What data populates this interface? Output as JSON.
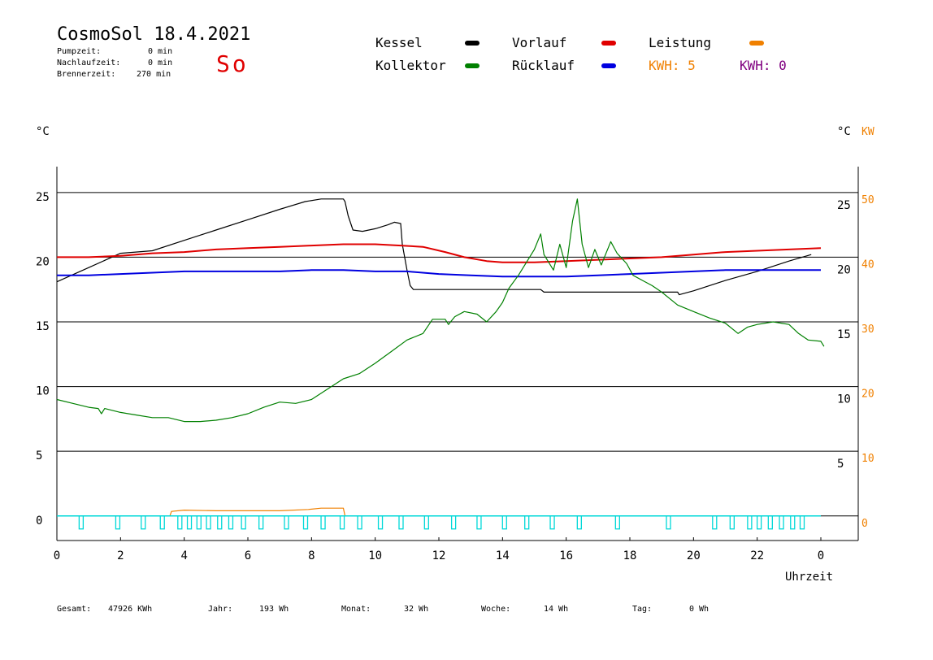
{
  "header": {
    "title": "CosmoSol 18.4.2021",
    "day": "So",
    "pumpzeit_label": "Pumpzeit:",
    "pumpzeit_value": "0 min",
    "nachlaufzeit_label": "Nachlaufzeit:",
    "nachlaufzeit_value": "0 min",
    "brennerzeit_label": "Brennerzeit:",
    "brennerzeit_value": "270 min"
  },
  "legend": {
    "kessel": "Kessel",
    "kollektor": "Kollektor",
    "vorlauf": "Vorlauf",
    "ruecklauf": "Rücklauf",
    "leistung": "Leistung",
    "kwh1": "KWH: 5",
    "kwh2": "KWH: 0"
  },
  "colors": {
    "kessel": "#000000",
    "kollektor": "#008000",
    "vorlauf": "#e00000",
    "ruecklauf": "#0000e0",
    "leistung": "#f08000",
    "kwh2": "#800080",
    "pump": "#00d8d8",
    "day": "#e00000"
  },
  "axes": {
    "left_unit": "°C",
    "right_unit": "°C",
    "right_unit2": "KW",
    "xlabel": "Uhrzeit"
  },
  "footer": {
    "gesamt_label": "Gesamt:",
    "gesamt_value": "47926 KWh",
    "jahr_label": "Jahr:",
    "jahr_value": "193 Wh",
    "monat_label": "Monat:",
    "monat_value": "32 Wh",
    "woche_label": "Woche:",
    "woche_value": "14 Wh",
    "tag_label": "Tag:",
    "tag_value": "0 Wh"
  },
  "chart_data": {
    "type": "line",
    "title": "CosmoSol 18.4.2021",
    "xlabel": "Uhrzeit",
    "ylabel": "°C",
    "xlim": [
      0,
      24
    ],
    "ylim": [
      -1.9,
      27
    ],
    "x_ticks": [
      "0",
      "2",
      "4",
      "6",
      "8",
      "10",
      "12",
      "14",
      "16",
      "18",
      "20",
      "22",
      "0"
    ],
    "y_left_ticks": [
      "0",
      "5",
      "10",
      "15",
      "20",
      "25"
    ],
    "y_right_temp_ticks": [
      "5",
      "10",
      "15",
      "20",
      "25"
    ],
    "y_right_kw_ticks": [
      "0",
      "10",
      "20",
      "30",
      "40",
      "50"
    ],
    "grid": "horizontal",
    "series": [
      {
        "name": "Kessel",
        "color": "#000000",
        "points": [
          [
            0,
            18.1
          ],
          [
            1,
            19.2
          ],
          [
            2,
            20.3
          ],
          [
            3,
            20.5
          ],
          [
            4,
            21.3
          ],
          [
            5,
            22.1
          ],
          [
            6,
            22.9
          ],
          [
            7,
            23.7
          ],
          [
            7.8,
            24.3
          ],
          [
            8.3,
            24.5
          ],
          [
            9.0,
            24.5
          ],
          [
            9.05,
            24.3
          ],
          [
            9.15,
            23.2
          ],
          [
            9.3,
            22.1
          ],
          [
            9.6,
            22.0
          ],
          [
            10.0,
            22.2
          ],
          [
            10.4,
            22.5
          ],
          [
            10.6,
            22.7
          ],
          [
            10.8,
            22.6
          ],
          [
            10.85,
            21.0
          ],
          [
            11.0,
            19.0
          ],
          [
            11.1,
            17.8
          ],
          [
            11.2,
            17.5
          ],
          [
            12,
            17.5
          ],
          [
            13,
            17.5
          ],
          [
            14,
            17.5
          ],
          [
            15.2,
            17.5
          ],
          [
            15.3,
            17.3
          ],
          [
            16,
            17.3
          ],
          [
            17,
            17.3
          ],
          [
            18,
            17.3
          ],
          [
            19.5,
            17.3
          ],
          [
            19.55,
            17.1
          ],
          [
            20,
            17.4
          ],
          [
            21,
            18.2
          ],
          [
            22,
            18.9
          ],
          [
            23,
            19.7
          ],
          [
            23.7,
            20.2
          ]
        ]
      },
      {
        "name": "Vorlauf",
        "color": "#e00000",
        "points": [
          [
            0,
            20.0
          ],
          [
            1,
            20.0
          ],
          [
            2,
            20.1
          ],
          [
            3,
            20.3
          ],
          [
            4,
            20.4
          ],
          [
            5,
            20.6
          ],
          [
            6,
            20.7
          ],
          [
            7,
            20.8
          ],
          [
            8,
            20.9
          ],
          [
            9,
            21.0
          ],
          [
            10,
            21.0
          ],
          [
            10.8,
            20.9
          ],
          [
            11.5,
            20.8
          ],
          [
            12.2,
            20.4
          ],
          [
            12.8,
            20.0
          ],
          [
            13.5,
            19.7
          ],
          [
            14,
            19.6
          ],
          [
            15,
            19.6
          ],
          [
            16,
            19.7
          ],
          [
            17,
            19.8
          ],
          [
            18,
            19.9
          ],
          [
            19,
            20.0
          ],
          [
            20,
            20.2
          ],
          [
            21,
            20.4
          ],
          [
            22,
            20.5
          ],
          [
            23,
            20.6
          ],
          [
            24,
            20.7
          ]
        ]
      },
      {
        "name": "Rücklauf",
        "color": "#0000e0",
        "points": [
          [
            0,
            18.6
          ],
          [
            1,
            18.6
          ],
          [
            2,
            18.7
          ],
          [
            3,
            18.8
          ],
          [
            4,
            18.9
          ],
          [
            5,
            18.9
          ],
          [
            6,
            18.9
          ],
          [
            7,
            18.9
          ],
          [
            8,
            19.0
          ],
          [
            9,
            19.0
          ],
          [
            10,
            18.9
          ],
          [
            11,
            18.9
          ],
          [
            12,
            18.7
          ],
          [
            13,
            18.6
          ],
          [
            14,
            18.5
          ],
          [
            15,
            18.5
          ],
          [
            16,
            18.5
          ],
          [
            17,
            18.6
          ],
          [
            18,
            18.7
          ],
          [
            19,
            18.8
          ],
          [
            20,
            18.9
          ],
          [
            21,
            19.0
          ],
          [
            22,
            19.0
          ],
          [
            23,
            19.0
          ],
          [
            24,
            19.0
          ]
        ]
      },
      {
        "name": "Kollektor",
        "color": "#008000",
        "points": [
          [
            0,
            9.0
          ],
          [
            0.5,
            8.7
          ],
          [
            1.0,
            8.4
          ],
          [
            1.3,
            8.3
          ],
          [
            1.4,
            7.9
          ],
          [
            1.5,
            8.3
          ],
          [
            2,
            8.0
          ],
          [
            2.5,
            7.8
          ],
          [
            3,
            7.6
          ],
          [
            3.5,
            7.6
          ],
          [
            4,
            7.3
          ],
          [
            4.5,
            7.3
          ],
          [
            5,
            7.4
          ],
          [
            5.5,
            7.6
          ],
          [
            6,
            7.9
          ],
          [
            6.5,
            8.4
          ],
          [
            7,
            8.8
          ],
          [
            7.5,
            8.7
          ],
          [
            8,
            9.0
          ],
          [
            8.5,
            9.8
          ],
          [
            9,
            10.6
          ],
          [
            9.5,
            11.0
          ],
          [
            10,
            11.8
          ],
          [
            10.5,
            12.7
          ],
          [
            11,
            13.6
          ],
          [
            11.5,
            14.1
          ],
          [
            11.8,
            15.2
          ],
          [
            12.2,
            15.2
          ],
          [
            12.3,
            14.8
          ],
          [
            12.5,
            15.4
          ],
          [
            12.8,
            15.8
          ],
          [
            13.2,
            15.6
          ],
          [
            13.5,
            15.0
          ],
          [
            13.8,
            15.8
          ],
          [
            14,
            16.5
          ],
          [
            14.2,
            17.6
          ],
          [
            14.5,
            18.6
          ],
          [
            14.8,
            19.8
          ],
          [
            15.0,
            20.6
          ],
          [
            15.2,
            21.8
          ],
          [
            15.3,
            20.2
          ],
          [
            15.6,
            19.0
          ],
          [
            15.8,
            21.0
          ],
          [
            16.0,
            19.2
          ],
          [
            16.2,
            22.8
          ],
          [
            16.35,
            24.5
          ],
          [
            16.5,
            21.0
          ],
          [
            16.7,
            19.2
          ],
          [
            16.9,
            20.6
          ],
          [
            17.1,
            19.4
          ],
          [
            17.4,
            21.2
          ],
          [
            17.6,
            20.3
          ],
          [
            17.9,
            19.5
          ],
          [
            18.1,
            18.6
          ],
          [
            18.4,
            18.2
          ],
          [
            18.7,
            17.8
          ],
          [
            19,
            17.3
          ],
          [
            19.5,
            16.3
          ],
          [
            20,
            15.8
          ],
          [
            20.5,
            15.3
          ],
          [
            21,
            14.9
          ],
          [
            21.4,
            14.1
          ],
          [
            21.7,
            14.6
          ],
          [
            22,
            14.8
          ],
          [
            22.5,
            15.0
          ],
          [
            23,
            14.8
          ],
          [
            23.3,
            14.1
          ],
          [
            23.6,
            13.6
          ],
          [
            24,
            13.5
          ],
          [
            24.1,
            13.1
          ]
        ]
      },
      {
        "name": "Leistung",
        "color": "#f08000",
        "points": [
          [
            0,
            0
          ],
          [
            3.55,
            0
          ],
          [
            3.6,
            0.35
          ],
          [
            4.0,
            0.45
          ],
          [
            5,
            0.4
          ],
          [
            6,
            0.4
          ],
          [
            7,
            0.4
          ],
          [
            7.9,
            0.5
          ],
          [
            8.3,
            0.6
          ],
          [
            9.0,
            0.6
          ],
          [
            9.05,
            0
          ]
        ]
      }
    ],
    "pump_pulses_h": [
      0.75,
      1.9,
      2.7,
      3.3,
      3.85,
      4.15,
      4.45,
      4.75,
      5.1,
      5.45,
      5.85,
      6.4,
      7.2,
      7.8,
      8.35,
      8.95,
      9.5,
      10.15,
      10.8,
      11.6,
      12.45,
      13.25,
      14.05,
      14.75,
      15.55,
      16.4,
      17.6,
      19.2,
      20.65,
      21.2,
      21.75,
      22.05,
      22.4,
      22.75,
      23.1,
      23.4
    ]
  }
}
